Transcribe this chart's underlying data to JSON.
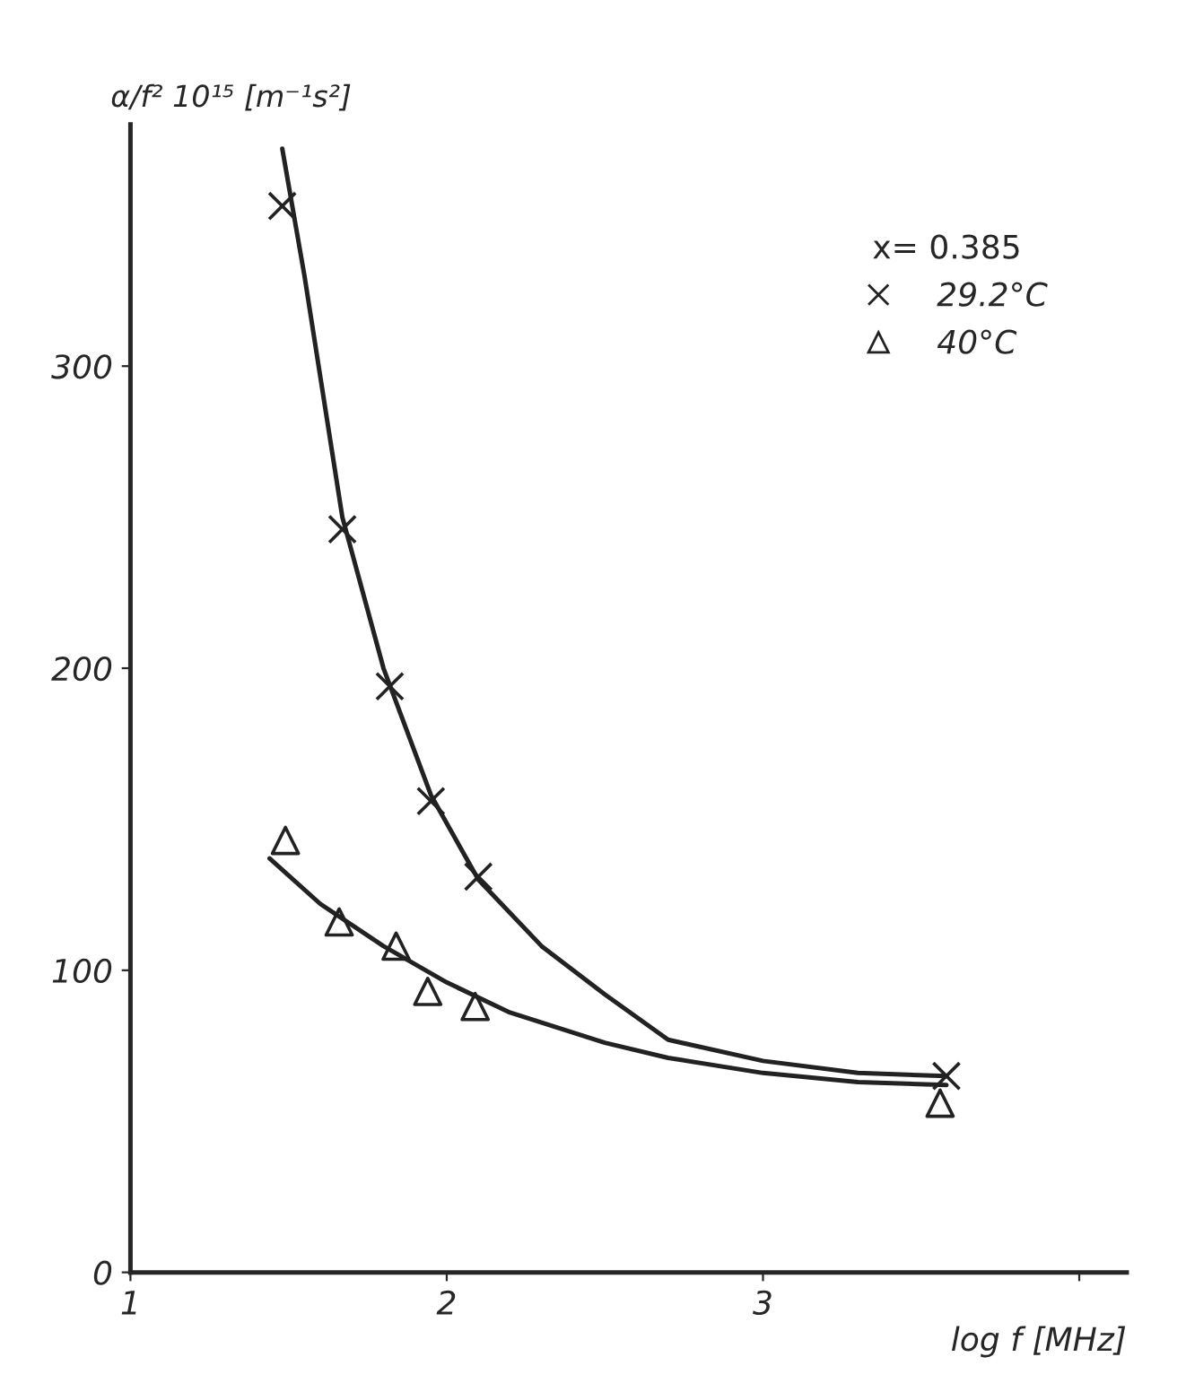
{
  "chart_data": {
    "type": "scatter",
    "xlabel": "log f [MHz]",
    "ylabel": "α/f² 10¹⁵ [m⁻¹s²]",
    "legend_title": "x= 0.385",
    "legend": "top right",
    "grid": false,
    "xlim": [
      1,
      4.15
    ],
    "xticks": [
      1,
      2,
      3,
      {
        "value": 4,
        "label": null
      }
    ],
    "ylim": [
      0,
      380
    ],
    "yticks": [
      0,
      100,
      200,
      300
    ],
    "series": [
      {
        "name": "29.2°C",
        "marker": "cross",
        "color": "#222222",
        "x": [
          1.48,
          1.67,
          1.82,
          1.95,
          2.1,
          3.58
        ],
        "values": [
          353,
          246,
          194,
          156,
          131,
          65
        ]
      },
      {
        "name": "40°C",
        "marker": "triangle",
        "color": "#222222",
        "x": [
          1.49,
          1.66,
          1.84,
          1.94,
          2.09,
          3.56
        ],
        "values": [
          143,
          116,
          108,
          93,
          88,
          56
        ]
      },
      {
        "type": "line",
        "marker": "none",
        "line_style": "solid",
        "color": "#222222",
        "x": [
          1.48,
          1.55,
          1.67,
          1.8,
          1.95,
          2.1,
          2.3,
          2.5,
          2.7,
          3.0,
          3.3,
          3.58
        ],
        "values": [
          372,
          330,
          250,
          200,
          158,
          130,
          108,
          92,
          77,
          70,
          66,
          65
        ]
      },
      {
        "type": "line",
        "marker": "none",
        "line_style": "solid",
        "color": "#222222",
        "x": [
          1.44,
          1.6,
          1.8,
          2.0,
          2.2,
          2.5,
          2.7,
          3.0,
          3.3,
          3.58
        ],
        "values": [
          137,
          122,
          108,
          96,
          86,
          76,
          71,
          66,
          63,
          62
        ]
      }
    ]
  }
}
